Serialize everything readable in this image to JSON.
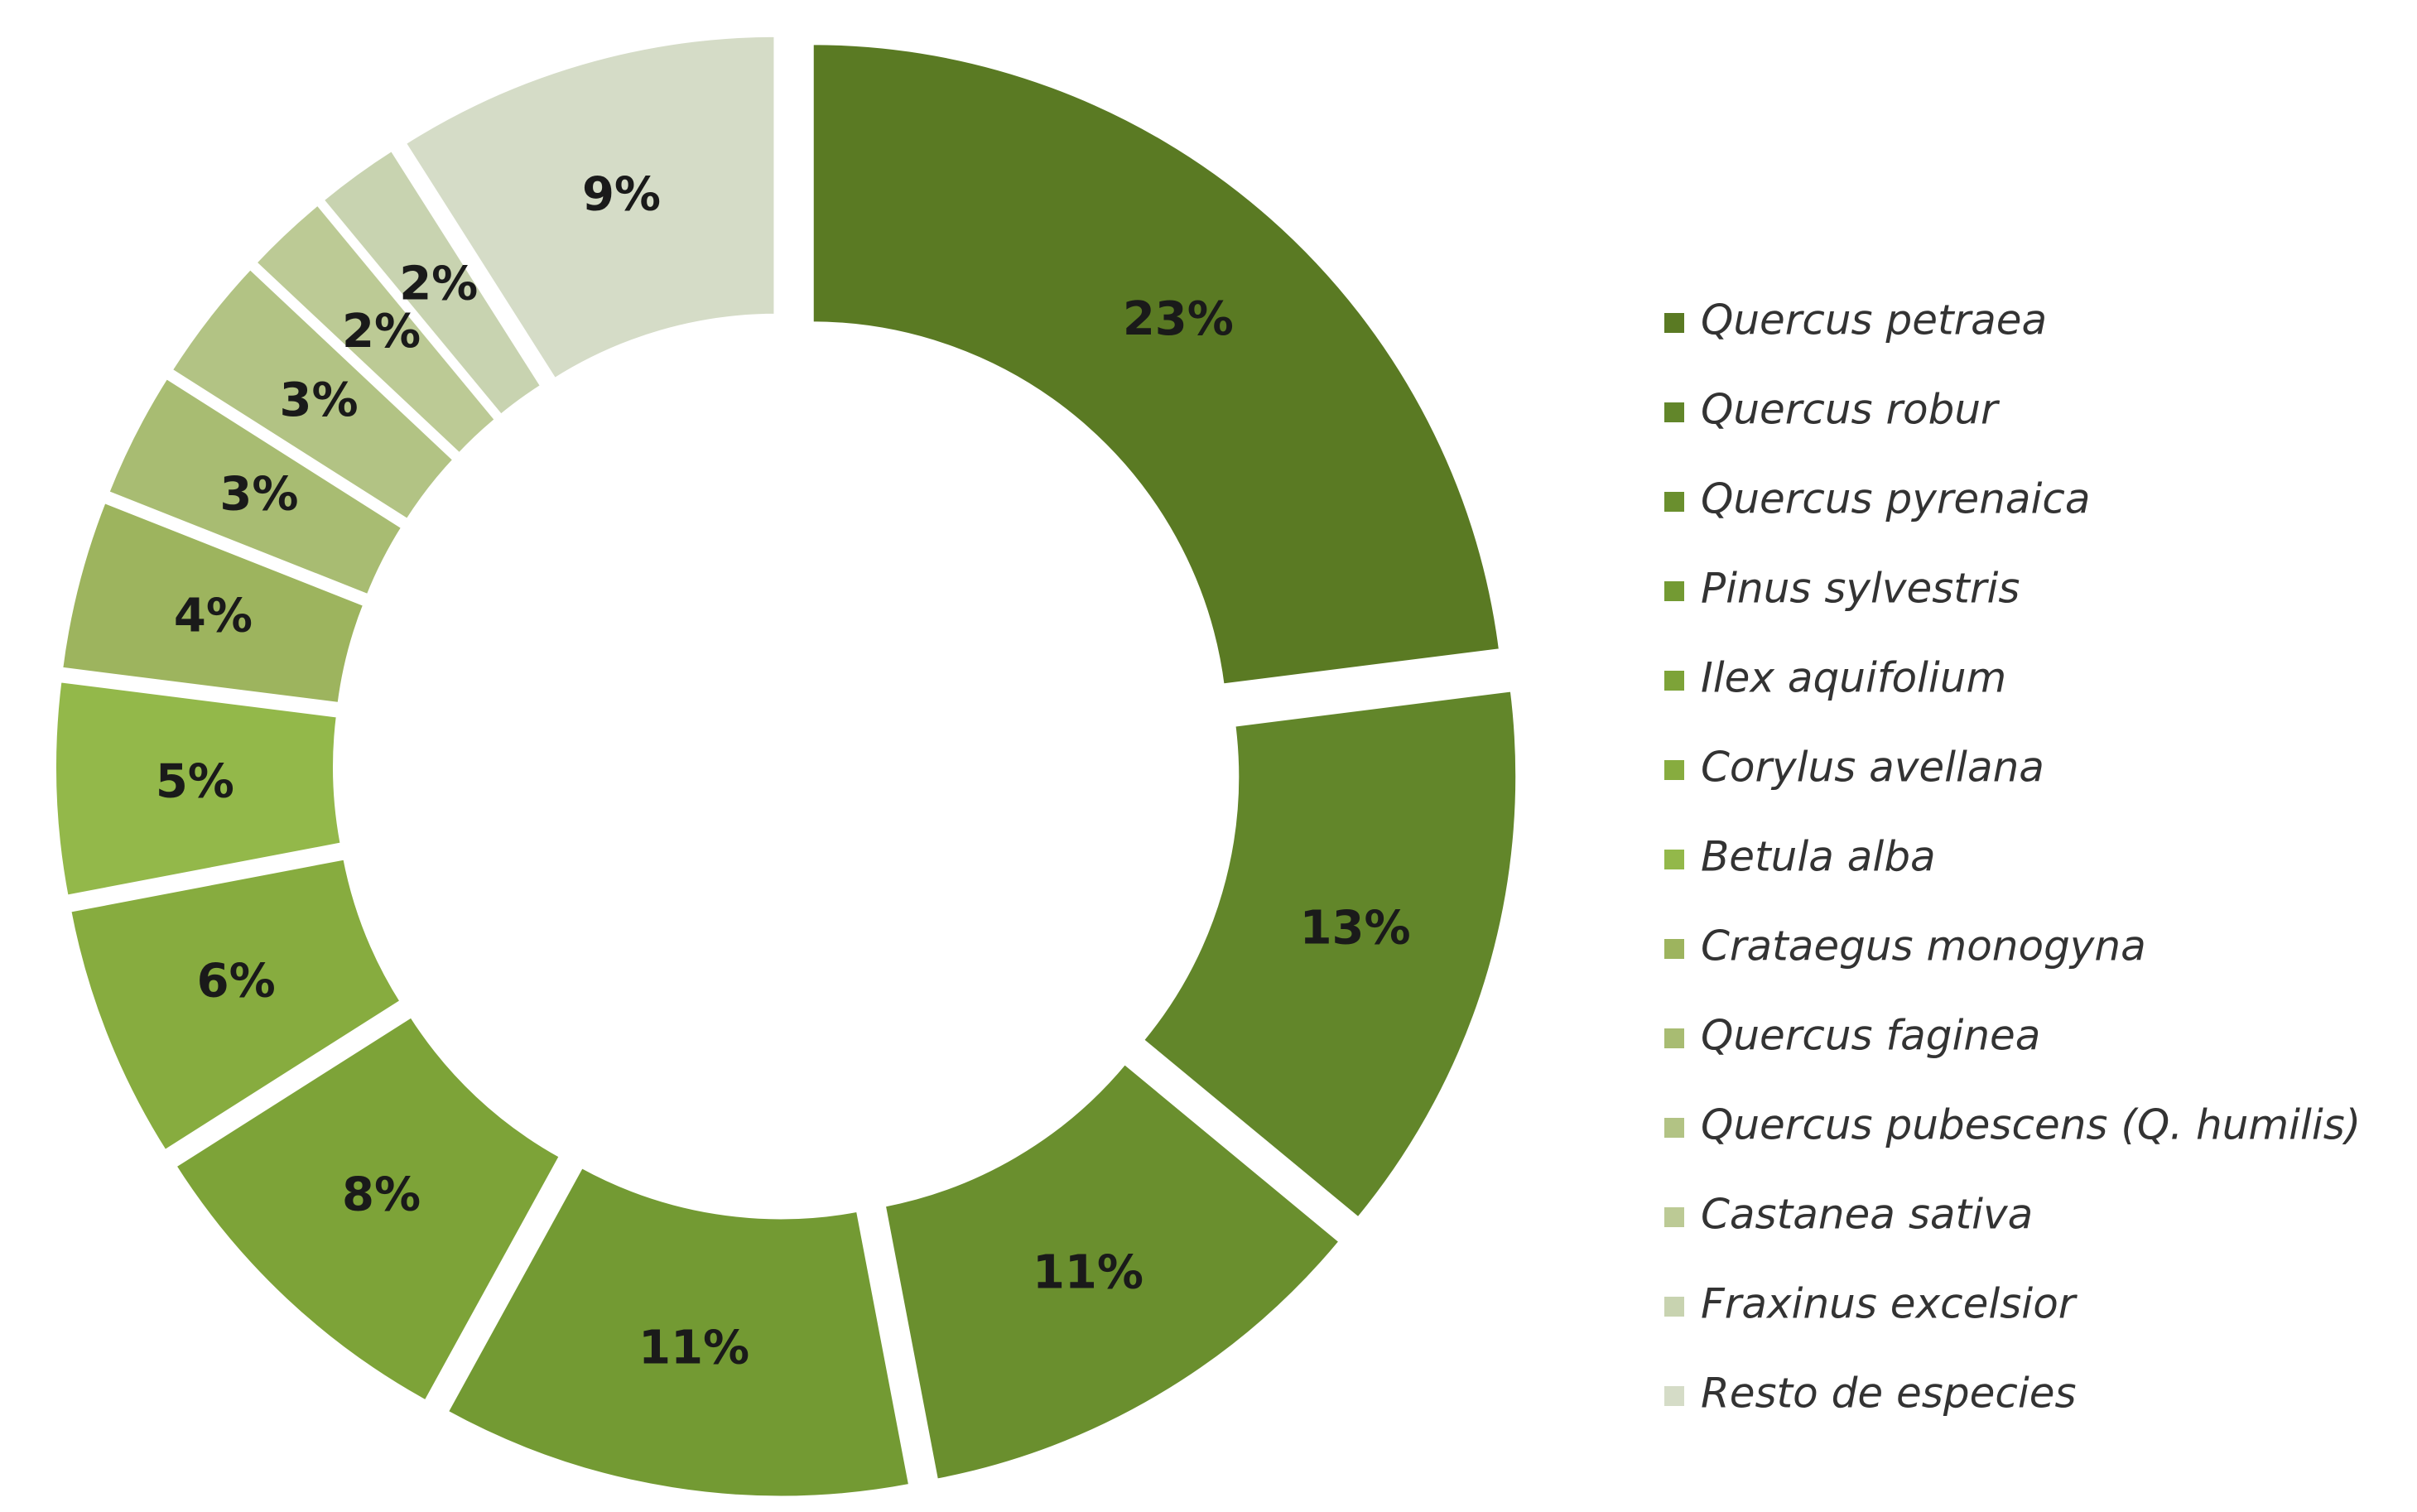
{
  "chart_data": {
    "type": "pie",
    "categories": [
      "Quercus petraea",
      "Quercus robur",
      "Quercus pyrenaica",
      "Pinus sylvestris",
      "Ilex aquifolium",
      "Corylus avellana",
      "Betula alba",
      "Crataegus monogyna",
      "Quercus faginea",
      "Quercus pubescens (Q. humilis)",
      "Castanea sativa",
      "Fraxinus excelsior",
      "Resto de especies"
    ],
    "values": [
      23,
      13,
      11,
      11,
      8,
      6,
      5,
      4,
      3,
      3,
      2,
      2,
      9
    ],
    "value_labels": [
      "23%",
      "13%",
      "11%",
      "11%",
      "8%",
      "6%",
      "5%",
      "4%",
      "3%",
      "3%",
      "2%",
      "2%",
      "9%"
    ],
    "colors": [
      "#5a7a23",
      "#62862a",
      "#6a8f2e",
      "#739a33",
      "#7da338",
      "#87ac3f",
      "#93b84a",
      "#9db45e",
      "#a8bc72",
      "#b2c384",
      "#bcca95",
      "#c8d3b0",
      "#d5dcc7"
    ],
    "donut": true,
    "legend": "right"
  }
}
